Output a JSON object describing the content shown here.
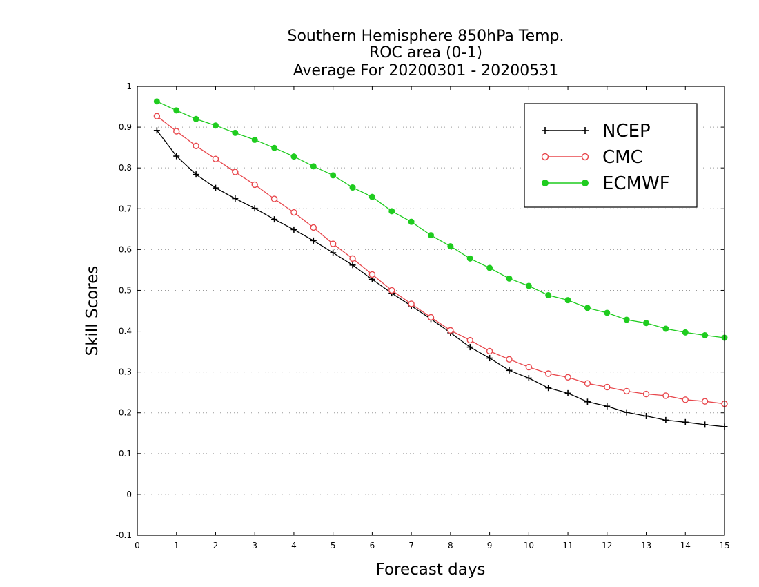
{
  "chart_data": {
    "type": "line",
    "title_lines": [
      "Southern Hemisphere 850hPa Temp.",
      "ROC area (0-1)",
      "Average For 20200301 - 20200531"
    ],
    "xlabel": "Forecast days",
    "ylabel": "Skill Scores",
    "xlim": [
      0,
      15
    ],
    "ylim": [
      -0.1,
      1
    ],
    "xticks": [
      "0",
      "1",
      "2",
      "3",
      "4",
      "5",
      "6",
      "7",
      "8",
      "9",
      "10",
      "11",
      "12",
      "13",
      "14",
      "15"
    ],
    "yticks": [
      "-0.1",
      "0",
      "0.1",
      "0.2",
      "0.3",
      "0.4",
      "0.5",
      "0.6",
      "0.7",
      "0.8",
      "0.9",
      "1"
    ],
    "grid": "horizontal dotted",
    "legend_position": "top-right",
    "x": [
      0.5,
      1,
      1.5,
      2,
      2.5,
      3,
      3.5,
      4,
      4.5,
      5,
      5.5,
      6,
      6.5,
      7,
      7.5,
      8,
      8.5,
      9,
      9.5,
      10,
      10.5,
      11,
      11.5,
      12,
      12.5,
      13,
      13.5,
      14,
      14.5,
      15
    ],
    "series": [
      {
        "name": "NCEP",
        "color": "#000000",
        "marker": "plus",
        "values": [
          0.892,
          0.829,
          0.784,
          0.751,
          0.725,
          0.701,
          0.674,
          0.649,
          0.622,
          0.592,
          0.562,
          0.527,
          0.493,
          0.462,
          0.43,
          0.396,
          0.361,
          0.334,
          0.304,
          0.285,
          0.261,
          0.248,
          0.227,
          0.216,
          0.201,
          0.192,
          0.182,
          0.177,
          0.171,
          0.166
        ]
      },
      {
        "name": "CMC",
        "color": "#e8474c",
        "marker": "open-circle",
        "values": [
          0.927,
          0.89,
          0.854,
          0.822,
          0.79,
          0.759,
          0.724,
          0.691,
          0.654,
          0.614,
          0.578,
          0.539,
          0.5,
          0.467,
          0.434,
          0.402,
          0.378,
          0.351,
          0.331,
          0.312,
          0.296,
          0.287,
          0.272,
          0.263,
          0.253,
          0.246,
          0.242,
          0.232,
          0.228,
          0.222
        ]
      },
      {
        "name": "ECMWF",
        "color": "#1fcc1f",
        "marker": "filled-circle",
        "values": [
          0.963,
          0.941,
          0.92,
          0.904,
          0.886,
          0.869,
          0.849,
          0.828,
          0.804,
          0.782,
          0.752,
          0.729,
          0.694,
          0.668,
          0.635,
          0.608,
          0.578,
          0.555,
          0.529,
          0.511,
          0.488,
          0.476,
          0.457,
          0.445,
          0.428,
          0.42,
          0.406,
          0.397,
          0.39,
          0.384
        ]
      }
    ]
  }
}
